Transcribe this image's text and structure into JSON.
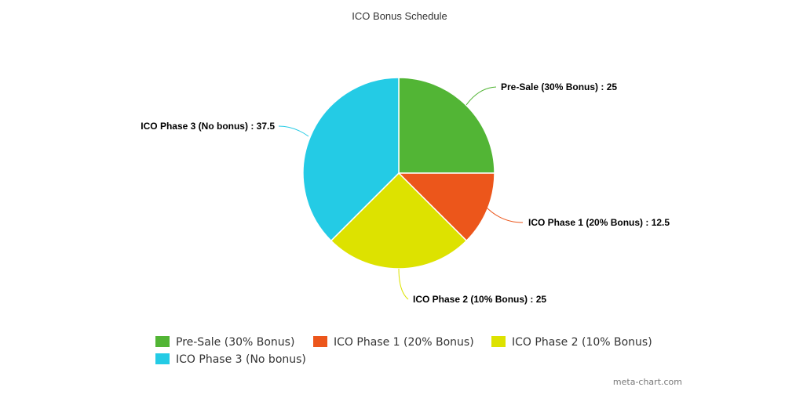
{
  "chart_data": {
    "type": "pie",
    "title": "ICO Bonus Schedule",
    "categories": [
      "Pre-Sale (30% Bonus)",
      "ICO Phase 1 (20% Bonus)",
      "ICO Phase 2 (10% Bonus)",
      "ICO Phase 3 (No bonus)"
    ],
    "values": [
      25,
      12.5,
      25,
      37.5
    ],
    "colors": [
      "#52b535",
      "#ec561b",
      "#dde200",
      "#24cbe5"
    ],
    "data_labels": [
      "Pre-Sale (30% Bonus) : 25",
      "ICO Phase 1 (20% Bonus) : 12.5",
      "ICO Phase 2 (10% Bonus) : 25",
      "ICO Phase 3 (No bonus) : 37.5"
    ],
    "legend_position": "bottom",
    "start_angle": "12 o'clock",
    "direction": "clockwise"
  },
  "credit": "meta-chart.com"
}
